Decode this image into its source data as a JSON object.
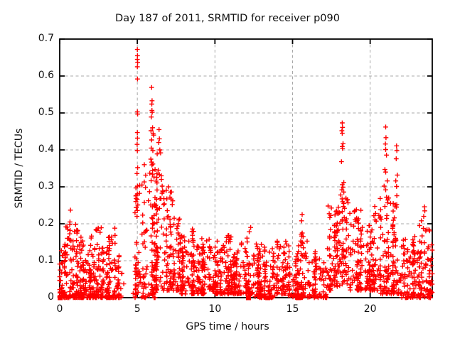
{
  "chart_data": {
    "type": "scatter",
    "title": "Day 187 of 2011, SRMTID for receiver p090",
    "xlabel": "GPS time / hours",
    "ylabel": "SRMTID / TECUs",
    "xlim": [
      0,
      24
    ],
    "ylim": [
      0,
      0.7
    ],
    "xticks": [
      0,
      5,
      10,
      15,
      20
    ],
    "yticks": [
      0,
      0.1,
      0.2,
      0.3,
      0.4,
      0.5,
      0.6,
      0.7
    ],
    "grid": true,
    "grid_style": "dashed",
    "legend": "none",
    "marker": "plus",
    "marker_color": "#ff0000",
    "grid_color": "#a8a8a8",
    "axis_color": "#000000",
    "background_color": "#ffffff",
    "seed": 1187,
    "segments_format": [
      "x_start",
      "x_end",
      "n_points",
      "y_min",
      "y_max",
      "skew_toward_ymin"
    ],
    "density_segments": [
      [
        0.0,
        0.3,
        35,
        0.0,
        0.13,
        2.2
      ],
      [
        0.3,
        0.8,
        55,
        0.0,
        0.2,
        2.4
      ],
      [
        0.8,
        1.3,
        55,
        0.0,
        0.19,
        2.4
      ],
      [
        1.3,
        2.2,
        100,
        0.0,
        0.17,
        2.3
      ],
      [
        2.2,
        2.7,
        55,
        0.0,
        0.19,
        2.4
      ],
      [
        2.7,
        3.1,
        45,
        0.0,
        0.15,
        2.2
      ],
      [
        3.1,
        3.7,
        65,
        0.0,
        0.19,
        2.5
      ],
      [
        3.7,
        4.05,
        25,
        0.0,
        0.12,
        2.0
      ],
      [
        4.05,
        4.85,
        2,
        0.0,
        0.05,
        1.5
      ],
      [
        4.85,
        5.15,
        40,
        0.0,
        0.3,
        1.7
      ],
      [
        5.15,
        5.55,
        30,
        0.0,
        0.36,
        2.0
      ],
      [
        5.55,
        6.2,
        70,
        0.0,
        0.38,
        1.7
      ],
      [
        6.2,
        6.8,
        65,
        0.02,
        0.34,
        1.6
      ],
      [
        6.8,
        7.3,
        55,
        0.02,
        0.3,
        1.8
      ],
      [
        7.3,
        7.8,
        50,
        0.02,
        0.22,
        1.8
      ],
      [
        7.8,
        8.3,
        50,
        0.01,
        0.17,
        1.8
      ],
      [
        8.3,
        9.0,
        70,
        0.01,
        0.185,
        1.9
      ],
      [
        9.0,
        10.0,
        95,
        0.01,
        0.16,
        1.9
      ],
      [
        10.0,
        10.6,
        60,
        0.01,
        0.155,
        1.9
      ],
      [
        10.6,
        11.2,
        60,
        0.01,
        0.17,
        1.9
      ],
      [
        11.2,
        12.0,
        75,
        0.01,
        0.15,
        1.9
      ],
      [
        12.0,
        12.5,
        50,
        0.01,
        0.185,
        2.0
      ],
      [
        12.5,
        13.2,
        65,
        0.0,
        0.15,
        2.0
      ],
      [
        13.2,
        14.0,
        70,
        0.0,
        0.145,
        2.0
      ],
      [
        14.0,
        14.7,
        65,
        0.01,
        0.165,
        1.9
      ],
      [
        14.7,
        15.5,
        70,
        0.0,
        0.145,
        2.0
      ],
      [
        15.5,
        16.0,
        45,
        0.0,
        0.175,
        2.2
      ],
      [
        16.0,
        16.6,
        45,
        0.0,
        0.125,
        2.0
      ],
      [
        16.6,
        17.2,
        35,
        0.0,
        0.11,
        1.9
      ],
      [
        17.2,
        17.8,
        55,
        0.02,
        0.25,
        1.7
      ],
      [
        17.8,
        18.6,
        80,
        0.03,
        0.27,
        1.5
      ],
      [
        18.6,
        19.4,
        75,
        0.02,
        0.24,
        1.7
      ],
      [
        19.4,
        20.1,
        60,
        0.02,
        0.2,
        1.8
      ],
      [
        20.1,
        20.6,
        50,
        0.02,
        0.24,
        1.8
      ],
      [
        20.6,
        21.3,
        70,
        0.01,
        0.27,
        1.8
      ],
      [
        21.3,
        22.0,
        70,
        0.01,
        0.26,
        1.9
      ],
      [
        22.0,
        23.0,
        90,
        0.0,
        0.17,
        2.1
      ],
      [
        23.0,
        23.8,
        80,
        0.0,
        0.2,
        2.1
      ],
      [
        23.8,
        24.0,
        30,
        0.0,
        0.19,
        1.9
      ]
    ],
    "peak_points": [
      [
        5.0,
        0.672
      ],
      [
        5.01,
        0.655
      ],
      [
        5.0,
        0.645
      ],
      [
        5.02,
        0.637
      ],
      [
        5.0,
        0.625
      ],
      [
        5.01,
        0.592
      ],
      [
        5.0,
        0.503
      ],
      [
        5.02,
        0.497
      ],
      [
        5.0,
        0.447
      ],
      [
        5.01,
        0.432
      ],
      [
        4.99,
        0.415
      ],
      [
        5.0,
        0.398
      ],
      [
        5.02,
        0.352
      ],
      [
        4.98,
        0.336
      ],
      [
        5.01,
        0.302
      ],
      [
        5.0,
        0.281
      ],
      [
        4.99,
        0.266
      ],
      [
        5.03,
        0.251
      ],
      [
        5.0,
        0.236
      ],
      [
        4.98,
        0.22
      ],
      [
        5.92,
        0.569
      ],
      [
        5.95,
        0.533
      ],
      [
        5.93,
        0.524
      ],
      [
        5.94,
        0.507
      ],
      [
        5.96,
        0.502
      ],
      [
        5.9,
        0.489
      ],
      [
        5.98,
        0.46
      ],
      [
        5.88,
        0.452
      ],
      [
        6.02,
        0.444
      ],
      [
        5.92,
        0.427
      ],
      [
        6.05,
        0.44
      ],
      [
        5.9,
        0.405
      ],
      [
        6.0,
        0.398
      ],
      [
        6.28,
        0.389
      ],
      [
        5.87,
        0.375
      ],
      [
        6.0,
        0.362
      ],
      [
        6.4,
        0.455
      ],
      [
        6.42,
        0.43
      ],
      [
        6.38,
        0.42
      ],
      [
        6.45,
        0.4
      ],
      [
        6.5,
        0.392
      ],
      [
        6.35,
        0.345
      ],
      [
        6.42,
        0.333
      ],
      [
        6.55,
        0.32
      ],
      [
        6.6,
        0.302
      ],
      [
        6.65,
        0.287
      ],
      [
        6.52,
        0.268
      ],
      [
        6.7,
        0.252
      ],
      [
        5.45,
        0.36
      ],
      [
        5.3,
        0.305
      ],
      [
        7.0,
        0.3
      ],
      [
        7.1,
        0.272
      ],
      [
        7.25,
        0.252
      ],
      [
        0.69,
        0.237
      ],
      [
        0.66,
        0.205
      ],
      [
        1.02,
        0.198
      ],
      [
        3.55,
        0.188
      ],
      [
        8.55,
        0.186
      ],
      [
        12.3,
        0.19
      ],
      [
        15.62,
        0.225
      ],
      [
        15.58,
        0.208
      ],
      [
        20.3,
        0.247
      ],
      [
        20.35,
        0.228
      ],
      [
        23.5,
        0.246
      ],
      [
        23.52,
        0.235
      ],
      [
        23.45,
        0.22
      ],
      [
        23.3,
        0.208
      ],
      [
        18.2,
        0.473
      ],
      [
        18.22,
        0.461
      ],
      [
        18.18,
        0.452
      ],
      [
        18.2,
        0.445
      ],
      [
        18.25,
        0.417
      ],
      [
        18.2,
        0.409
      ],
      [
        18.22,
        0.404
      ],
      [
        18.15,
        0.368
      ],
      [
        18.3,
        0.312
      ],
      [
        18.2,
        0.306
      ],
      [
        18.25,
        0.299
      ],
      [
        18.18,
        0.292
      ],
      [
        18.3,
        0.286
      ],
      [
        18.1,
        0.278
      ],
      [
        18.35,
        0.242
      ],
      [
        18.2,
        0.233
      ],
      [
        21.0,
        0.462
      ],
      [
        21.02,
        0.433
      ],
      [
        20.98,
        0.416
      ],
      [
        21.0,
        0.401
      ],
      [
        21.05,
        0.386
      ],
      [
        20.95,
        0.347
      ],
      [
        21.0,
        0.34
      ],
      [
        21.1,
        0.316
      ],
      [
        20.9,
        0.302
      ],
      [
        21.0,
        0.292
      ],
      [
        21.05,
        0.272
      ],
      [
        20.95,
        0.247
      ],
      [
        21.7,
        0.411
      ],
      [
        21.72,
        0.398
      ],
      [
        21.68,
        0.376
      ],
      [
        21.75,
        0.332
      ],
      [
        21.65,
        0.316
      ],
      [
        21.7,
        0.301
      ],
      [
        21.72,
        0.276
      ],
      [
        21.6,
        0.251
      ]
    ],
    "zero_marker_hours": [
      0.03,
      12.16,
      13.4,
      15.37
    ]
  }
}
